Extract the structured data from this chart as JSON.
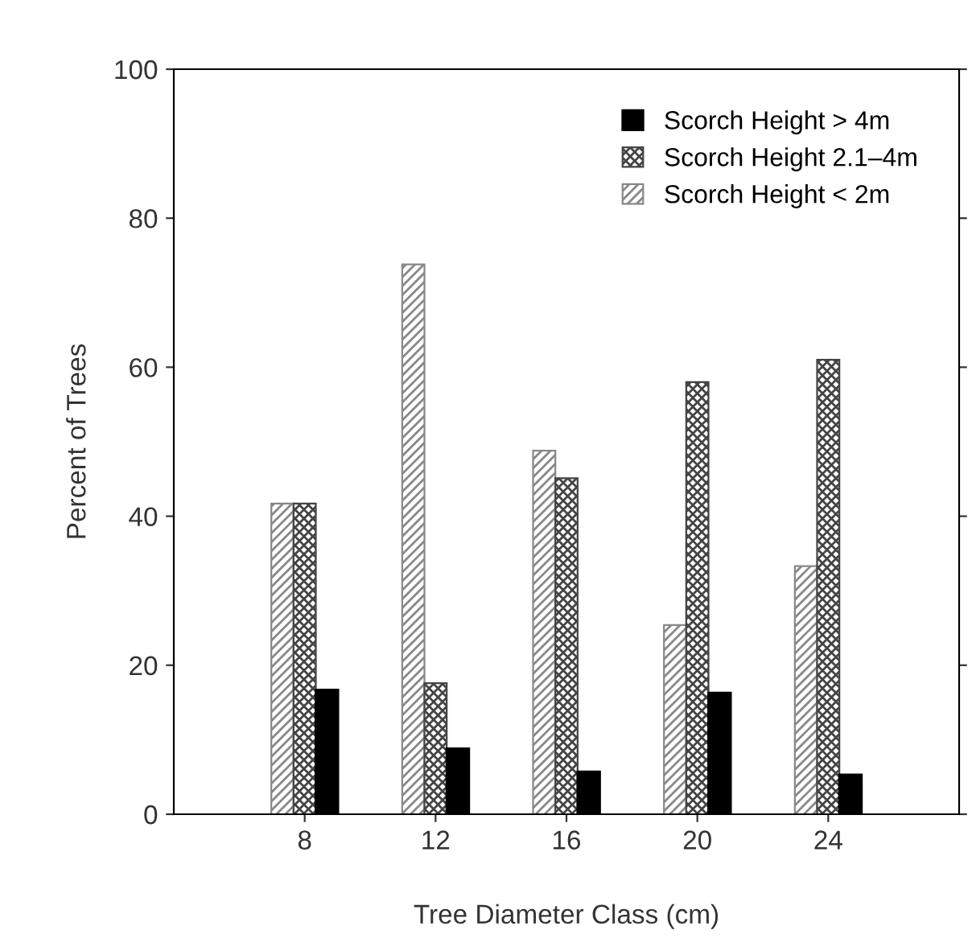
{
  "chart_data": {
    "type": "bar",
    "xlabel": "Tree Diameter Class (cm)",
    "ylabel": "Percent of Trees",
    "x": [
      8,
      12,
      16,
      20,
      24
    ],
    "xlim": [
      4,
      28
    ],
    "xticks": [
      8,
      12,
      16,
      20,
      24
    ],
    "ylim": [
      0,
      100
    ],
    "yticks": [
      0,
      20,
      40,
      60,
      80,
      100
    ],
    "grid": false,
    "legend": "top right",
    "series": [
      {
        "name": "Scorch Height < 2m",
        "color": "#888888",
        "values": [
          41.7,
          73.8,
          48.8,
          25.4,
          33.3
        ]
      },
      {
        "name": "Scorch Height 2.1–4m",
        "color": "#444444",
        "values": [
          41.7,
          17.6,
          45.1,
          58,
          61
        ]
      },
      {
        "name": "Scorch Height > 4m",
        "color": "#000000",
        "values": [
          16.7,
          8.8,
          5.7,
          16.3,
          5.3
        ]
      }
    ]
  }
}
